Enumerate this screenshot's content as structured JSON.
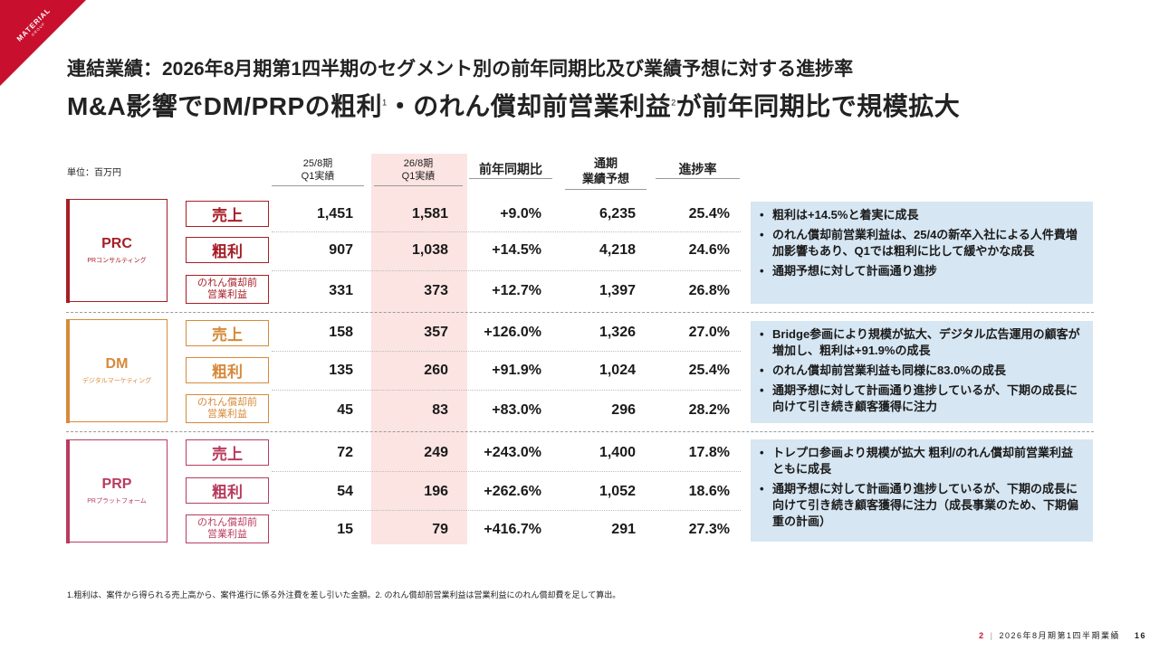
{
  "brand": {
    "logo_text": "MATERIAL",
    "logo_sub": "GROUP",
    "accent": "#c8102e"
  },
  "header": {
    "subtitle": "連結業績：2026年8月期第1四半期のセグメント別の前年同期比及び業績予想に対する進捗率",
    "title_part1": "M&A影響でDM/PRPの粗利",
    "title_sup1": "1",
    "title_part2": "・のれん償却前営業利益",
    "title_sup2": "2",
    "title_part3": "が前年同期比で規模拡大"
  },
  "table": {
    "unit": "単位：百万円",
    "columns": {
      "prev_line1": "25/8期",
      "prev_line2": "Q1実績",
      "curr_line1": "26/8期",
      "curr_line2": "Q1実績",
      "yoy": "前年同期比",
      "forecast_line1": "通期",
      "forecast_line2": "業績予想",
      "progress": "進捗率"
    },
    "row_labels": {
      "sales": "売上",
      "gross": "粗利",
      "op_line1": "のれん償却前",
      "op_line2": "営業利益"
    },
    "segments": [
      {
        "name": "PRC",
        "sub": "PRコンサルティング",
        "color": "#a61e26",
        "rows": [
          {
            "prev": "1,451",
            "curr": "1,581",
            "yoy": "+9.0%",
            "forecast": "6,235",
            "progress": "25.4%"
          },
          {
            "prev": "907",
            "curr": "1,038",
            "yoy": "+14.5%",
            "forecast": "4,218",
            "progress": "24.6%"
          },
          {
            "prev": "331",
            "curr": "373",
            "yoy": "+12.7%",
            "forecast": "1,397",
            "progress": "26.8%"
          }
        ],
        "notes": [
          "粗利は+14.5%と着実に成長",
          "のれん償却前営業利益は、25/4の新卒入社による人件費増加影響もあり、Q1では粗利に比して緩やかな成長",
          "通期予想に対して計画通り進捗"
        ]
      },
      {
        "name": "DM",
        "sub": "デジタルマーケティング",
        "color": "#d68a3a",
        "rows": [
          {
            "prev": "158",
            "curr": "357",
            "yoy": "+126.0%",
            "forecast": "1,326",
            "progress": "27.0%"
          },
          {
            "prev": "135",
            "curr": "260",
            "yoy": "+91.9%",
            "forecast": "1,024",
            "progress": "25.4%"
          },
          {
            "prev": "45",
            "curr": "83",
            "yoy": "+83.0%",
            "forecast": "296",
            "progress": "28.2%"
          }
        ],
        "notes": [
          "Bridge参画により規模が拡大、デジタル広告運用の顧客が増加し、粗利は+91.9%の成長",
          "のれん償却前営業利益も同様に83.0%の成長",
          "通期予想に対して計画通り進捗しているが、下期の成長に向けて引き続き顧客獲得に注力"
        ]
      },
      {
        "name": "PRP",
        "sub": "PRプラットフォーム",
        "color": "#b83b5e",
        "rows": [
          {
            "prev": "72",
            "curr": "249",
            "yoy": "+243.0%",
            "forecast": "1,400",
            "progress": "17.8%"
          },
          {
            "prev": "54",
            "curr": "196",
            "yoy": "+262.6%",
            "forecast": "1,052",
            "progress": "18.6%"
          },
          {
            "prev": "15",
            "curr": "79",
            "yoy": "+416.7%",
            "forecast": "291",
            "progress": "27.3%"
          }
        ],
        "notes": [
          "トレプロ参画より規模が拡大 粗利/のれん償却前営業利益ともに成長",
          "通期予想に対して計画通り進捗しているが、下期の成長に向けて引き続き顧客獲得に注力（成長事業のため、下期偏重の計画）"
        ]
      }
    ]
  },
  "footnote": "1.粗利は、案件から得られる売上高から、案件進行に係る外注費を差し引いた金額。2. のれん償却前営業利益は営業利益にのれん償却費を足して算出。",
  "footer": {
    "section": "2",
    "label": "2026年8月期第1四半期業績",
    "page": "16"
  }
}
